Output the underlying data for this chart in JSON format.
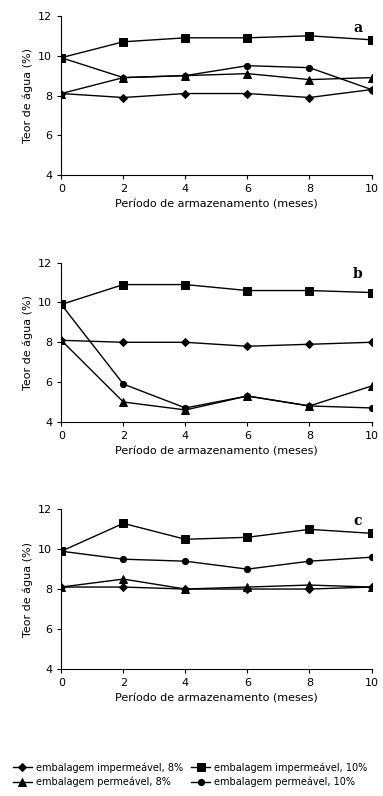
{
  "x": [
    0,
    2,
    4,
    6,
    8,
    10
  ],
  "series": {
    "imp_8": {
      "label": "embalagem impermeável, 8%",
      "marker": "D",
      "a": [
        8.1,
        7.9,
        8.1,
        8.1,
        7.9,
        8.3
      ],
      "b": [
        8.1,
        8.0,
        8.0,
        7.8,
        7.9,
        8.0
      ],
      "c": [
        8.1,
        8.1,
        8.0,
        8.0,
        8.0,
        8.1
      ]
    },
    "imp_10": {
      "label": "embalagem impermeável, 10%",
      "marker": "s",
      "a": [
        9.9,
        10.7,
        10.9,
        10.9,
        11.0,
        10.8
      ],
      "b": [
        9.9,
        10.9,
        10.9,
        10.6,
        10.6,
        10.5
      ],
      "c": [
        9.9,
        11.3,
        10.5,
        10.6,
        11.0,
        10.8
      ]
    },
    "per_8": {
      "label": "embalagem permeável, 8%",
      "marker": "^",
      "a": [
        8.1,
        8.9,
        9.0,
        9.1,
        8.8,
        8.9
      ],
      "b": [
        8.1,
        5.0,
        4.6,
        5.3,
        4.8,
        5.8
      ],
      "c": [
        8.1,
        8.5,
        8.0,
        8.1,
        8.2,
        8.1
      ]
    },
    "per_10": {
      "label": "embalagem permeável, 10%",
      "marker": "o",
      "a": [
        9.9,
        8.9,
        9.0,
        9.5,
        9.4,
        8.3
      ],
      "b": [
        9.9,
        5.9,
        4.7,
        5.3,
        4.8,
        4.7
      ],
      "c": [
        9.9,
        9.5,
        9.4,
        9.0,
        9.4,
        9.6
      ]
    }
  },
  "ylim": [
    4,
    12
  ],
  "yticks": [
    4,
    6,
    8,
    10,
    12
  ],
  "xlim": [
    0,
    10
  ],
  "xticks": [
    0,
    2,
    4,
    6,
    8,
    10
  ],
  "ylabel": "Teor de água (%)",
  "xlabel": "Período de armazenamento (meses)",
  "line_color": "black",
  "linewidth": 1.0,
  "tick_fontsize": 8,
  "label_fontsize": 8,
  "panel_label_fontsize": 10,
  "legend_fontsize": 7,
  "series_order": [
    "imp_8",
    "imp_10",
    "per_8",
    "per_10"
  ],
  "legend_order": [
    "imp_8",
    "per_8",
    "imp_10",
    "per_10"
  ],
  "panels": [
    "a",
    "b",
    "c"
  ]
}
